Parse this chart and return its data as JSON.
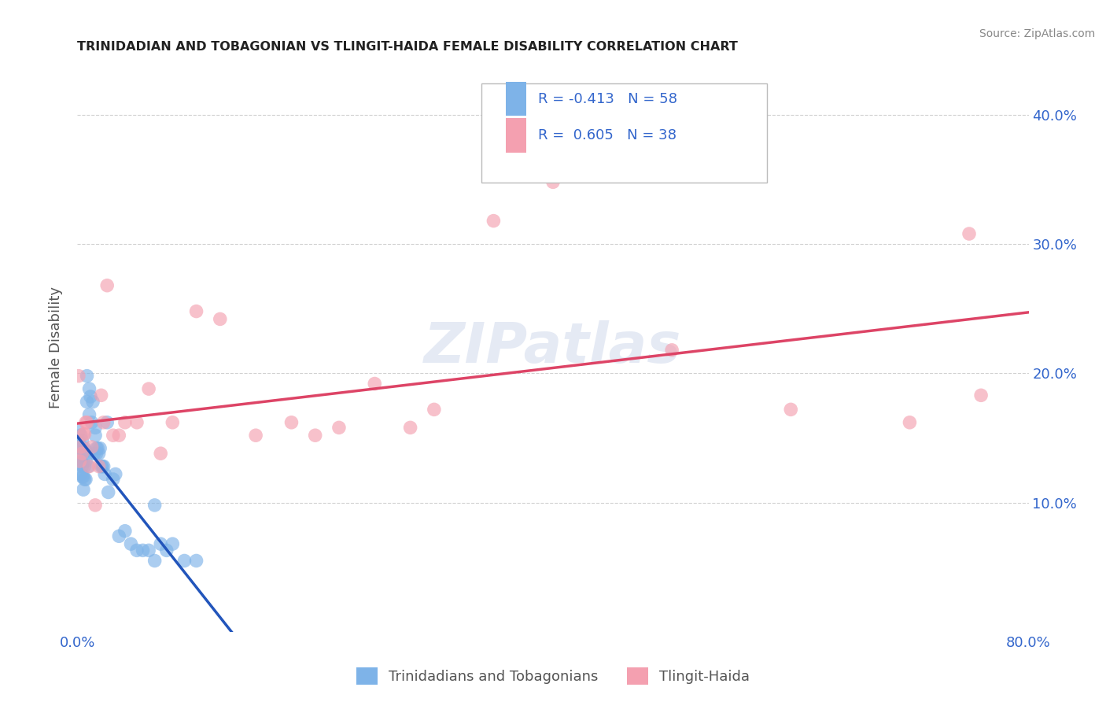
{
  "title": "TRINIDADIAN AND TOBAGONIAN VS TLINGIT-HAIDA FEMALE DISABILITY CORRELATION CHART",
  "source": "Source: ZipAtlas.com",
  "ylabel": "Female Disability",
  "xlim": [
    0,
    0.8
  ],
  "ylim": [
    0.0,
    0.44
  ],
  "yticks": [
    0.1,
    0.2,
    0.3,
    0.4
  ],
  "ytick_labels": [
    "10.0%",
    "20.0%",
    "30.0%",
    "40.0%"
  ],
  "xticks": [
    0.0,
    0.1,
    0.2,
    0.3,
    0.4,
    0.5,
    0.6,
    0.7,
    0.8
  ],
  "xtick_labels": [
    "0.0%",
    "",
    "",
    "",
    "",
    "",
    "",
    "",
    "80.0%"
  ],
  "legend_label1": "Trinidadians and Tobagonians",
  "legend_label2": "Tlingit-Haida",
  "r1": -0.413,
  "n1": 58,
  "r2": 0.605,
  "n2": 38,
  "color1": "#7EB3E8",
  "color2": "#F4A0B0",
  "line_color1": "#2255BB",
  "line_color2": "#DD4466",
  "watermark": "ZIPatlas",
  "blue_x": [
    0.001,
    0.001,
    0.002,
    0.002,
    0.003,
    0.003,
    0.003,
    0.003,
    0.004,
    0.004,
    0.004,
    0.004,
    0.005,
    0.005,
    0.005,
    0.006,
    0.006,
    0.006,
    0.007,
    0.007,
    0.007,
    0.008,
    0.008,
    0.009,
    0.01,
    0.01,
    0.011,
    0.012,
    0.013,
    0.014,
    0.015,
    0.015,
    0.016,
    0.016,
    0.017,
    0.018,
    0.019,
    0.02,
    0.021,
    0.022,
    0.023,
    0.025,
    0.026,
    0.03,
    0.032,
    0.035,
    0.04,
    0.045,
    0.05,
    0.055,
    0.06,
    0.065,
    0.065,
    0.07,
    0.075,
    0.08,
    0.09,
    0.1
  ],
  "blue_y": [
    0.148,
    0.155,
    0.13,
    0.142,
    0.122,
    0.132,
    0.142,
    0.152,
    0.12,
    0.128,
    0.138,
    0.148,
    0.11,
    0.12,
    0.132,
    0.118,
    0.128,
    0.142,
    0.118,
    0.132,
    0.14,
    0.178,
    0.198,
    0.128,
    0.168,
    0.188,
    0.182,
    0.162,
    0.178,
    0.138,
    0.152,
    0.158,
    0.138,
    0.142,
    0.142,
    0.138,
    0.142,
    0.128,
    0.128,
    0.128,
    0.122,
    0.162,
    0.108,
    0.118,
    0.122,
    0.074,
    0.078,
    0.068,
    0.063,
    0.063,
    0.063,
    0.098,
    0.055,
    0.068,
    0.063,
    0.068,
    0.055,
    0.055
  ],
  "pink_x": [
    0.001,
    0.002,
    0.003,
    0.004,
    0.005,
    0.006,
    0.007,
    0.008,
    0.01,
    0.012,
    0.015,
    0.018,
    0.02,
    0.022,
    0.025,
    0.03,
    0.035,
    0.04,
    0.05,
    0.06,
    0.07,
    0.08,
    0.1,
    0.12,
    0.15,
    0.18,
    0.2,
    0.22,
    0.25,
    0.28,
    0.3,
    0.35,
    0.4,
    0.5,
    0.6,
    0.7,
    0.75,
    0.76
  ],
  "pink_y": [
    0.198,
    0.132,
    0.143,
    0.138,
    0.153,
    0.153,
    0.162,
    0.162,
    0.128,
    0.143,
    0.098,
    0.128,
    0.183,
    0.162,
    0.268,
    0.152,
    0.152,
    0.162,
    0.162,
    0.188,
    0.138,
    0.162,
    0.248,
    0.242,
    0.152,
    0.162,
    0.152,
    0.158,
    0.192,
    0.158,
    0.172,
    0.318,
    0.348,
    0.218,
    0.172,
    0.162,
    0.308,
    0.183
  ],
  "blue_line_x0": 0.0,
  "blue_line_x_solid_end": 0.3,
  "blue_line_x_dashed_end": 0.75,
  "pink_line_x0": 0.0,
  "pink_line_x1": 0.8
}
